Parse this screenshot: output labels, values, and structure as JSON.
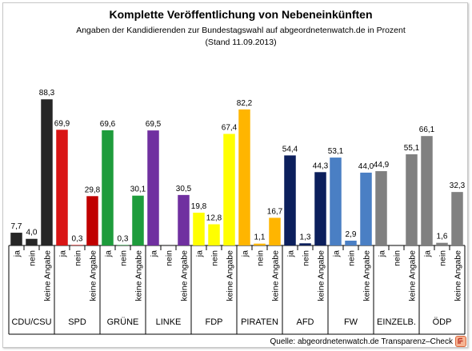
{
  "chart_data": {
    "type": "bar",
    "title": "Komplette Veröffentlichung von Nebeneinkünften",
    "subtitle": "Angaben der Kandidierenden zur Bundestagswahl auf abgeordnetenwatch.de  in Prozent",
    "subtitle2": "(Stand 11.09.2013)",
    "ylim": [
      0,
      100
    ],
    "grid": false,
    "legend": "none",
    "bar_labels": [
      "ja",
      "nein",
      "keine Angabe"
    ],
    "groups": [
      {
        "name": "CDU/CSU",
        "values": [
          "7,7",
          "4,0",
          "88,3"
        ],
        "colors": [
          "#262626",
          "#262626",
          "#262626"
        ]
      },
      {
        "name": "SPD",
        "values": [
          "69,9",
          "0,3",
          "29,8"
        ],
        "colors": [
          "#d91515",
          "#d91515",
          "#c00000"
        ]
      },
      {
        "name": "GRÜNE",
        "values": [
          "69,6",
          "0,3",
          "30,1"
        ],
        "colors": [
          "#1e9c3c",
          "#1e9c3c",
          "#1e9c3c"
        ]
      },
      {
        "name": "LINKE",
        "values": [
          "69,5",
          "",
          "30,5"
        ],
        "colors": [
          "#7030a0",
          "#7030a0",
          "#7030a0"
        ]
      },
      {
        "name": "FDP",
        "values": [
          "19,8",
          "12,8",
          "67,4"
        ],
        "colors": [
          "#ffff00",
          "#ffff00",
          "#ffff00"
        ]
      },
      {
        "name": "PIRATEN",
        "values": [
          "82,2",
          "1,1",
          "16,7"
        ],
        "colors": [
          "#ffb500",
          "#ffb500",
          "#ffb500"
        ]
      },
      {
        "name": "AFD",
        "values": [
          "54,4",
          "1,3",
          "44,3"
        ],
        "colors": [
          "#0c1f5c",
          "#0c1f5c",
          "#0c1f5c"
        ]
      },
      {
        "name": "FW",
        "values": [
          "53,1",
          "2,9",
          "44,0"
        ],
        "colors": [
          "#4a7fc4",
          "#4a7fc4",
          "#4a7fc4"
        ]
      },
      {
        "name": "EINZELB.",
        "values": [
          "44,9",
          "",
          "55,1"
        ],
        "colors": [
          "#808080",
          "#808080",
          "#808080"
        ]
      },
      {
        "name": "ÖDP",
        "values": [
          "66,1",
          "1,6",
          "32,3"
        ],
        "colors": [
          "#808080",
          "#808080",
          "#808080"
        ]
      }
    ]
  },
  "source": "Quelle: abgeordnetenwatch.de Transparenz–Check",
  "source_icon": "abgeordnetenwatch-logo-icon"
}
